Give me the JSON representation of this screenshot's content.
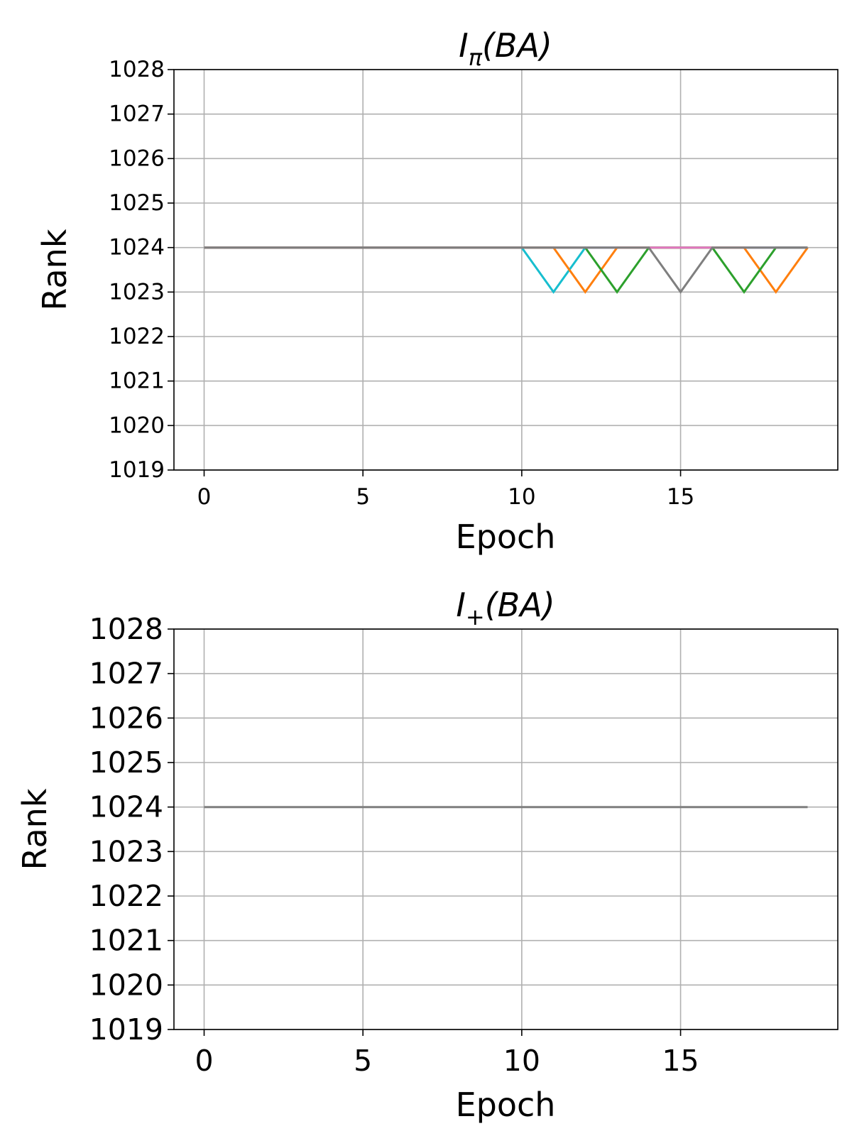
{
  "chart_data": [
    {
      "type": "line",
      "title_main": "I",
      "title_sub": "π",
      "title_tail": "(BA)",
      "xlabel": "Epoch",
      "ylabel": "Rank",
      "xlim": [
        -0.95,
        19.95
      ],
      "ylim": [
        1019,
        1028
      ],
      "xticks": [
        0,
        5,
        10,
        15
      ],
      "yticks": [
        1019,
        1020,
        1021,
        1022,
        1023,
        1024,
        1025,
        1026,
        1027,
        1028
      ],
      "grid": true,
      "colors": {
        "blue": "#1f77b4",
        "orange": "#ff7f0e",
        "green": "#2ca02c",
        "red": "#d62728",
        "purple": "#9467bd",
        "brown": "#8c564b",
        "pink": "#e377c2",
        "gray": "#7f7f7f",
        "olive": "#bcbd22",
        "cyan": "#17becf"
      },
      "x": [
        0,
        1,
        2,
        3,
        4,
        5,
        6,
        7,
        8,
        9,
        10,
        11,
        12,
        13,
        14,
        15,
        16,
        17,
        18,
        19
      ],
      "series": [
        {
          "color": "cyan",
          "values": [
            1024,
            1024,
            1024,
            1024,
            1024,
            1024,
            1024,
            1024,
            1024,
            1024,
            1024,
            1023,
            1024,
            1024,
            1024,
            1024,
            1024,
            1024,
            1024,
            1024
          ]
        },
        {
          "color": "orange",
          "values": [
            1024,
            1024,
            1024,
            1024,
            1024,
            1024,
            1024,
            1024,
            1024,
            1024,
            1024,
            1024,
            1023,
            1024,
            1024,
            1024,
            1024,
            1024,
            1023,
            1024
          ]
        },
        {
          "color": "green",
          "values": [
            1024,
            1024,
            1024,
            1024,
            1024,
            1024,
            1024,
            1024,
            1024,
            1024,
            1024,
            1024,
            1024,
            1023,
            1024,
            1024,
            1024,
            1023,
            1024,
            1024
          ]
        },
        {
          "color": "pink",
          "values": [
            1024,
            1024,
            1024,
            1024,
            1024,
            1024,
            1024,
            1024,
            1024,
            1024,
            1024,
            1024,
            1024,
            1024,
            1024,
            1024,
            1024,
            1024,
            1024,
            1024
          ]
        },
        {
          "color": "gray",
          "values": [
            1024,
            1024,
            1024,
            1024,
            1024,
            1024,
            1024,
            1024,
            1024,
            1024,
            1024,
            1024,
            1024,
            1024,
            1024,
            1023,
            1024,
            1024,
            1024,
            1024
          ]
        }
      ]
    },
    {
      "type": "line",
      "title_main": "I",
      "title_sub": "+",
      "title_tail": "(BA)",
      "xlabel": "Epoch",
      "ylabel": "Rank",
      "xlim": [
        -0.95,
        19.95
      ],
      "ylim": [
        1019,
        1028
      ],
      "xticks": [
        0,
        5,
        10,
        15
      ],
      "yticks": [
        1019,
        1020,
        1021,
        1022,
        1023,
        1024,
        1025,
        1026,
        1027,
        1028
      ],
      "grid": true,
      "colors": {
        "gray": "#7f7f7f"
      },
      "x": [
        0,
        1,
        2,
        3,
        4,
        5,
        6,
        7,
        8,
        9,
        10,
        11,
        12,
        13,
        14,
        15,
        16,
        17,
        18,
        19
      ],
      "series": [
        {
          "color": "gray",
          "values": [
            1024,
            1024,
            1024,
            1024,
            1024,
            1024,
            1024,
            1024,
            1024,
            1024,
            1024,
            1024,
            1024,
            1024,
            1024,
            1024,
            1024,
            1024,
            1024,
            1024
          ]
        }
      ]
    }
  ]
}
